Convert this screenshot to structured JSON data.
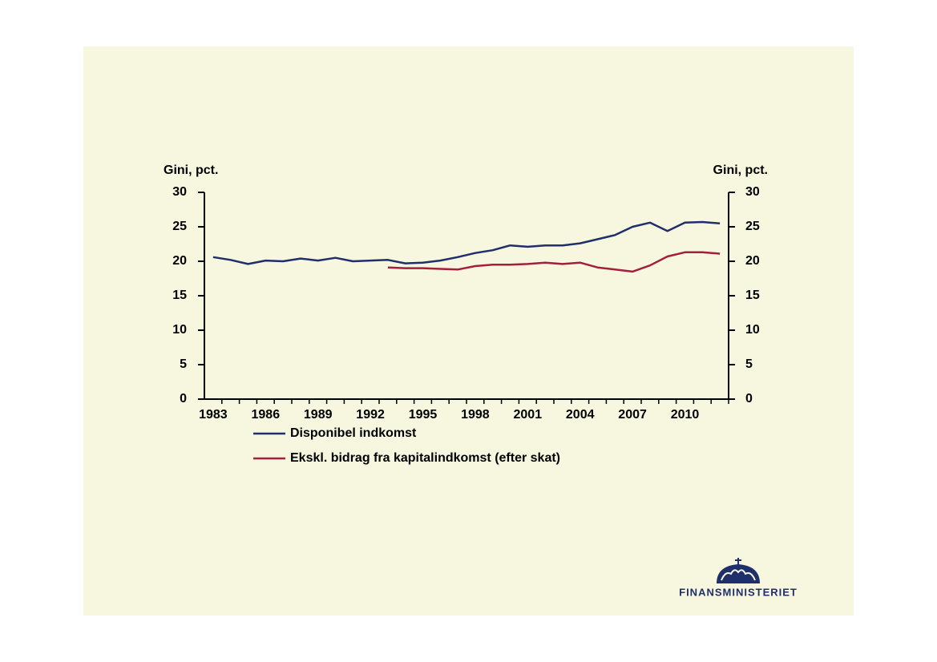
{
  "chart_data": {
    "type": "line",
    "categories": [
      "1983",
      null,
      null,
      "1986",
      null,
      null,
      "1989",
      null,
      null,
      "1992",
      null,
      null,
      "1995",
      null,
      null,
      "1998",
      null,
      null,
      "2001",
      null,
      null,
      "2004",
      null,
      null,
      "2007",
      null,
      null,
      "2010",
      null,
      null
    ],
    "series": [
      {
        "name": "Disponibel indkomst",
        "color": "#1f2f6b",
        "values": [
          20.6,
          20.2,
          19.6,
          20.1,
          20.0,
          20.4,
          20.1,
          20.5,
          20.0,
          20.1,
          20.2,
          19.7,
          19.8,
          20.1,
          20.6,
          21.2,
          21.6,
          22.3,
          22.1,
          22.3,
          22.3,
          22.6,
          23.2,
          23.8,
          25.0,
          25.6,
          24.4,
          25.6,
          25.7,
          25.5
        ]
      },
      {
        "name": "Ekskl. bidrag fra kapitalindkomst (efter skat)",
        "color": "#a3203c",
        "values": [
          null,
          null,
          null,
          null,
          null,
          null,
          null,
          null,
          null,
          null,
          19.1,
          19.0,
          19.0,
          18.9,
          18.8,
          19.3,
          19.5,
          19.5,
          19.6,
          19.8,
          19.6,
          19.8,
          19.1,
          18.8,
          18.5,
          19.4,
          20.7,
          21.3,
          21.3,
          21.1
        ]
      }
    ],
    "ylabel": "Gini, pct.",
    "y2label": "Gini, pct.",
    "ylim": [
      0,
      30
    ],
    "yticks": [
      0,
      5,
      10,
      15,
      20,
      25,
      30
    ],
    "y2lim": [
      0,
      30
    ],
    "y2ticks": [
      0,
      5,
      10,
      15,
      20,
      25,
      30
    ],
    "grid": false
  },
  "logo": {
    "text": "FINANSMINISTERIET"
  }
}
